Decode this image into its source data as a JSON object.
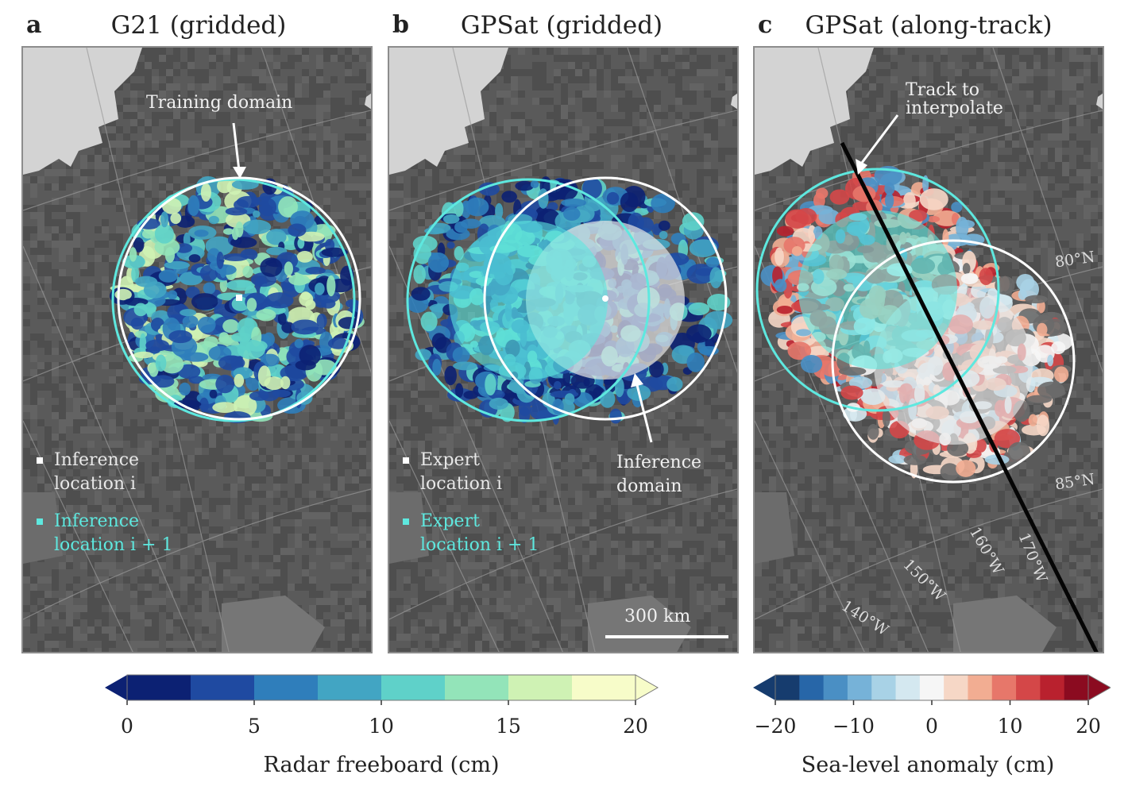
{
  "panels": [
    {
      "letter": "a",
      "title": "G21 (gridded)"
    },
    {
      "letter": "b",
      "title": "GPSat (gridded)"
    },
    {
      "letter": "c",
      "title": "GPSat (along-track)"
    }
  ],
  "annotations": {
    "training_domain": "Training domain",
    "inference_domain_1": "Inference",
    "inference_domain_2": "domain",
    "track_1": "Track to",
    "track_2": "interpolate",
    "scale_bar": "300 km"
  },
  "legend_a": {
    "white_1": "Inference",
    "white_2": "location i",
    "cyan_1": "Inference",
    "cyan_2": "location i + 1"
  },
  "legend_b": {
    "white_1": "Expert",
    "white_2": "location i",
    "cyan_1": "Expert",
    "cyan_2": "location i + 1"
  },
  "graticule_labels": {
    "lat80": "80°N",
    "lat85": "85°N",
    "lon170": "170°W",
    "lon160": "160°W",
    "lon150": "150°W",
    "lon140": "140°W"
  },
  "colorbar_freeboard": {
    "label": "Radar freeboard (cm)",
    "ticks": [
      "0",
      "5",
      "10",
      "15",
      "20"
    ],
    "colors": [
      "#0c2173",
      "#1f4aa1",
      "#2f7ebb",
      "#42a5c3",
      "#5fd1c9",
      "#93e4b9",
      "#cff2b4",
      "#f7fcc9"
    ]
  },
  "colorbar_sla": {
    "label": "Sea-level anomaly (cm)",
    "ticks": [
      "−20",
      "−10",
      "0",
      "10",
      "20"
    ],
    "colors": [
      "#163c6e",
      "#2766a8",
      "#4a8fc4",
      "#76b2d8",
      "#a8d2e6",
      "#d4e8f0",
      "#f6f6f6",
      "#f6d7c6",
      "#f2ad92",
      "#e7776a",
      "#d44748",
      "#b9212e",
      "#8b0b20"
    ]
  },
  "style": {
    "land": "#d3d3d3",
    "ocean_dark": "#4d4d4d",
    "cyan": "#5ee8df",
    "white": "#ffffff"
  }
}
